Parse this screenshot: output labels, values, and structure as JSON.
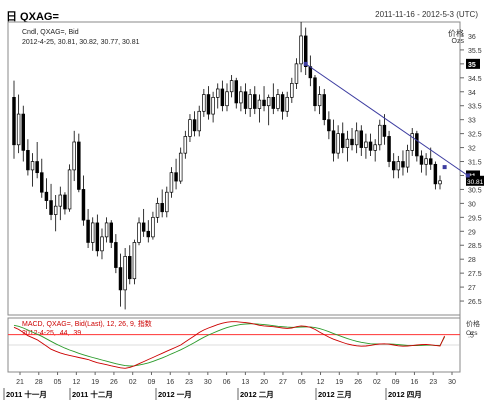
{
  "header": {
    "title": "日 QXAG=",
    "date_range": "2011-11-16 - 2012-5-3 (UTC)"
  },
  "legend": {
    "line1": "Cndl, QXAG=, Bid",
    "line2": "2012-4-25, 30.81, 30.82, 30.77, 30.81"
  },
  "price_axis": {
    "unit": "价格",
    "unit2": "Ozs"
  },
  "macd": {
    "line1": "MACD, QXAG=, Bid(Last), 12, 26, 9, 指数",
    "line2": "2012-4-25, .44, .39",
    "unit": "价格",
    "unit2": "Ozs",
    "ticks": [
      ".5"
    ]
  },
  "chart_data": [
    {
      "type": "candlestick",
      "title": "QXAG=",
      "ylim": [
        26,
        36.5
      ],
      "y_ticks": [
        26.5,
        27,
        27.5,
        28,
        28.5,
        29,
        29.5,
        30,
        30.5,
        31,
        31.5,
        32,
        32.5,
        33,
        33.5,
        34,
        34.5,
        35,
        35.5,
        36
      ],
      "y_tick_labels": [
        "26.5",
        "27",
        "27.5",
        "28",
        "28.5",
        "29",
        "29.5",
        "30",
        "30.5",
        "31",
        "31.5",
        "32",
        "32.5",
        "33",
        "33.5",
        "34",
        "34.5",
        "35",
        "35.5",
        "36"
      ],
      "last_price_label": "30.81",
      "marked_levels": [
        {
          "value": 35,
          "label": "35"
        },
        {
          "value": 31,
          "label": "31"
        }
      ],
      "x_tick_labels": [
        "21",
        "28",
        "05",
        "12",
        "19",
        "26",
        "02",
        "09",
        "16",
        "23",
        "30",
        "06",
        "13",
        "20",
        "27",
        "05",
        "12",
        "19",
        "26",
        "02",
        "09",
        "16",
        "23",
        "30"
      ],
      "month_labels": [
        "2011 十一月",
        "2011 十二月",
        "2012 一月",
        "2012 二月",
        "2012 三月",
        "2012 四月"
      ],
      "candles": [
        {
          "o": 33.8,
          "h": 34.4,
          "l": 31.6,
          "c": 32.1
        },
        {
          "o": 32.1,
          "h": 33.9,
          "l": 31.8,
          "c": 33.2
        },
        {
          "o": 33.2,
          "h": 33.5,
          "l": 31.5,
          "c": 31.9
        },
        {
          "o": 31.9,
          "h": 32.3,
          "l": 31.0,
          "c": 31.2
        },
        {
          "o": 31.2,
          "h": 31.8,
          "l": 30.6,
          "c": 31.5
        },
        {
          "o": 31.5,
          "h": 32.2,
          "l": 30.9,
          "c": 31.1
        },
        {
          "o": 31.1,
          "h": 31.6,
          "l": 30.2,
          "c": 30.4
        },
        {
          "o": 30.4,
          "h": 30.9,
          "l": 29.8,
          "c": 30.1
        },
        {
          "o": 30.1,
          "h": 30.7,
          "l": 29.4,
          "c": 29.6
        },
        {
          "o": 29.6,
          "h": 30.3,
          "l": 29.0,
          "c": 29.9
        },
        {
          "o": 29.9,
          "h": 30.6,
          "l": 29.4,
          "c": 30.3
        },
        {
          "o": 30.3,
          "h": 30.4,
          "l": 29.6,
          "c": 29.8
        },
        {
          "o": 29.8,
          "h": 31.4,
          "l": 29.7,
          "c": 31.2
        },
        {
          "o": 31.2,
          "h": 32.6,
          "l": 30.8,
          "c": 32.2
        },
        {
          "o": 32.2,
          "h": 32.5,
          "l": 30.4,
          "c": 30.5
        },
        {
          "o": 30.5,
          "h": 31.0,
          "l": 29.2,
          "c": 29.4
        },
        {
          "o": 29.4,
          "h": 29.8,
          "l": 28.4,
          "c": 28.6
        },
        {
          "o": 28.6,
          "h": 29.5,
          "l": 28.3,
          "c": 29.3
        },
        {
          "o": 29.3,
          "h": 29.6,
          "l": 28.1,
          "c": 28.3
        },
        {
          "o": 28.3,
          "h": 29.1,
          "l": 28.0,
          "c": 28.8
        },
        {
          "o": 28.8,
          "h": 29.5,
          "l": 28.6,
          "c": 29.3
        },
        {
          "o": 29.3,
          "h": 29.4,
          "l": 28.4,
          "c": 28.6
        },
        {
          "o": 28.6,
          "h": 28.9,
          "l": 27.5,
          "c": 27.7
        },
        {
          "o": 27.7,
          "h": 28.2,
          "l": 26.3,
          "c": 26.9
        },
        {
          "o": 26.9,
          "h": 28.4,
          "l": 26.2,
          "c": 28.1
        },
        {
          "o": 28.1,
          "h": 28.5,
          "l": 27.1,
          "c": 27.3
        },
        {
          "o": 27.3,
          "h": 28.7,
          "l": 27.1,
          "c": 28.6
        },
        {
          "o": 28.6,
          "h": 29.5,
          "l": 28.5,
          "c": 29.3
        },
        {
          "o": 29.3,
          "h": 29.8,
          "l": 28.8,
          "c": 29.0
        },
        {
          "o": 29.0,
          "h": 29.4,
          "l": 28.6,
          "c": 28.8
        },
        {
          "o": 28.8,
          "h": 29.7,
          "l": 28.7,
          "c": 29.5
        },
        {
          "o": 29.5,
          "h": 30.2,
          "l": 29.3,
          "c": 30.0
        },
        {
          "o": 30.0,
          "h": 30.5,
          "l": 29.5,
          "c": 29.7
        },
        {
          "o": 29.7,
          "h": 30.6,
          "l": 29.5,
          "c": 30.4
        },
        {
          "o": 30.4,
          "h": 31.3,
          "l": 30.2,
          "c": 31.1
        },
        {
          "o": 31.1,
          "h": 31.6,
          "l": 30.5,
          "c": 30.8
        },
        {
          "o": 30.8,
          "h": 32.0,
          "l": 30.7,
          "c": 31.8
        },
        {
          "o": 31.8,
          "h": 32.6,
          "l": 31.6,
          "c": 32.4
        },
        {
          "o": 32.4,
          "h": 33.2,
          "l": 32.2,
          "c": 33.0
        },
        {
          "o": 33.0,
          "h": 33.3,
          "l": 32.4,
          "c": 32.6
        },
        {
          "o": 32.6,
          "h": 33.5,
          "l": 32.4,
          "c": 33.3
        },
        {
          "o": 33.3,
          "h": 34.1,
          "l": 33.1,
          "c": 33.9
        },
        {
          "o": 33.9,
          "h": 34.2,
          "l": 33.0,
          "c": 33.2
        },
        {
          "o": 33.2,
          "h": 34.0,
          "l": 32.9,
          "c": 33.8
        },
        {
          "o": 33.8,
          "h": 34.3,
          "l": 33.4,
          "c": 34.1
        },
        {
          "o": 34.1,
          "h": 34.4,
          "l": 33.3,
          "c": 33.5
        },
        {
          "o": 33.5,
          "h": 34.3,
          "l": 33.3,
          "c": 34.0
        },
        {
          "o": 34.0,
          "h": 34.6,
          "l": 33.8,
          "c": 34.4
        },
        {
          "o": 34.4,
          "h": 34.5,
          "l": 33.4,
          "c": 33.6
        },
        {
          "o": 33.6,
          "h": 34.2,
          "l": 33.3,
          "c": 34.0
        },
        {
          "o": 34.0,
          "h": 34.3,
          "l": 33.2,
          "c": 33.4
        },
        {
          "o": 33.4,
          "h": 34.1,
          "l": 33.1,
          "c": 33.9
        },
        {
          "o": 33.9,
          "h": 34.2,
          "l": 33.2,
          "c": 33.4
        },
        {
          "o": 33.4,
          "h": 33.9,
          "l": 32.9,
          "c": 33.7
        },
        {
          "o": 33.7,
          "h": 34.2,
          "l": 33.3,
          "c": 33.5
        },
        {
          "o": 33.5,
          "h": 33.9,
          "l": 32.8,
          "c": 33.8
        },
        {
          "o": 33.8,
          "h": 34.3,
          "l": 33.2,
          "c": 33.4
        },
        {
          "o": 33.4,
          "h": 34.1,
          "l": 33.3,
          "c": 33.9
        },
        {
          "o": 33.9,
          "h": 34.0,
          "l": 33.0,
          "c": 33.3
        },
        {
          "o": 33.3,
          "h": 34.0,
          "l": 33.1,
          "c": 33.8
        },
        {
          "o": 33.8,
          "h": 34.5,
          "l": 33.6,
          "c": 34.3
        },
        {
          "o": 34.3,
          "h": 35.2,
          "l": 34.1,
          "c": 35.0
        },
        {
          "o": 35.0,
          "h": 36.5,
          "l": 34.7,
          "c": 36.0
        },
        {
          "o": 36.0,
          "h": 36.3,
          "l": 34.6,
          "c": 34.9
        },
        {
          "o": 34.9,
          "h": 35.3,
          "l": 34.2,
          "c": 34.5
        },
        {
          "o": 34.5,
          "h": 34.6,
          "l": 33.3,
          "c": 33.5
        },
        {
          "o": 33.5,
          "h": 34.2,
          "l": 33.2,
          "c": 33.9
        },
        {
          "o": 33.9,
          "h": 34.1,
          "l": 32.8,
          "c": 33.0
        },
        {
          "o": 33.0,
          "h": 33.3,
          "l": 32.3,
          "c": 32.6
        },
        {
          "o": 32.6,
          "h": 33.0,
          "l": 31.5,
          "c": 31.8
        },
        {
          "o": 31.8,
          "h": 32.8,
          "l": 31.6,
          "c": 32.5
        },
        {
          "o": 32.5,
          "h": 32.9,
          "l": 31.8,
          "c": 32.0
        },
        {
          "o": 32.0,
          "h": 32.6,
          "l": 31.5,
          "c": 32.3
        },
        {
          "o": 32.3,
          "h": 32.7,
          "l": 31.9,
          "c": 32.1
        },
        {
          "o": 32.1,
          "h": 32.9,
          "l": 31.8,
          "c": 32.6
        },
        {
          "o": 32.6,
          "h": 32.8,
          "l": 31.7,
          "c": 32.0
        },
        {
          "o": 32.0,
          "h": 32.5,
          "l": 31.6,
          "c": 32.2
        },
        {
          "o": 32.2,
          "h": 32.5,
          "l": 31.7,
          "c": 31.9
        },
        {
          "o": 31.9,
          "h": 32.3,
          "l": 31.5,
          "c": 32.1
        },
        {
          "o": 32.1,
          "h": 33.0,
          "l": 31.9,
          "c": 32.8
        },
        {
          "o": 32.8,
          "h": 33.2,
          "l": 32.1,
          "c": 32.4
        },
        {
          "o": 32.4,
          "h": 32.6,
          "l": 31.3,
          "c": 31.5
        },
        {
          "o": 31.5,
          "h": 31.8,
          "l": 30.9,
          "c": 31.2
        },
        {
          "o": 31.2,
          "h": 31.7,
          "l": 30.9,
          "c": 31.5
        },
        {
          "o": 31.5,
          "h": 31.9,
          "l": 31.0,
          "c": 31.3
        },
        {
          "o": 31.3,
          "h": 32.1,
          "l": 31.1,
          "c": 31.9
        },
        {
          "o": 31.9,
          "h": 32.7,
          "l": 31.7,
          "c": 32.5
        },
        {
          "o": 32.5,
          "h": 32.6,
          "l": 31.5,
          "c": 31.7
        },
        {
          "o": 31.7,
          "h": 31.9,
          "l": 31.1,
          "c": 31.4
        },
        {
          "o": 31.4,
          "h": 31.8,
          "l": 31.0,
          "c": 31.6
        },
        {
          "o": 31.6,
          "h": 32.0,
          "l": 31.2,
          "c": 31.4
        },
        {
          "o": 31.4,
          "h": 31.5,
          "l": 30.5,
          "c": 30.7
        },
        {
          "o": 30.7,
          "h": 31.0,
          "l": 30.5,
          "c": 30.81
        }
      ],
      "trendline": {
        "x0_index": 63,
        "y0": 35.0,
        "x1_index": 93,
        "y1": 31.3,
        "x2_index": 98,
        "y2": 31.0
      }
    },
    {
      "type": "line",
      "title": "MACD",
      "series": [
        {
          "name": "MACD",
          "color": "#cc0000"
        },
        {
          "name": "Signal",
          "color": "#2a9a2a"
        }
      ],
      "macd_values": [
        0.85,
        0.75,
        0.6,
        0.45,
        0.35,
        0.25,
        0.1,
        -0.05,
        -0.2,
        -0.3,
        -0.38,
        -0.45,
        -0.5,
        -0.55,
        -0.6,
        -0.65,
        -0.7,
        -0.78,
        -0.85,
        -0.9,
        -0.95,
        -1.0,
        -1.05,
        -1.1,
        -1.12,
        -1.08,
        -1.0,
        -0.9,
        -0.8,
        -0.7,
        -0.6,
        -0.5,
        -0.4,
        -0.3,
        -0.2,
        -0.1,
        0.0,
        0.15,
        0.3,
        0.45,
        0.6,
        0.72,
        0.82,
        0.9,
        0.98,
        1.05,
        1.1,
        1.12,
        1.12,
        1.1,
        1.08,
        1.05,
        1.0,
        0.95,
        0.92,
        0.9,
        0.88,
        0.85,
        0.82,
        0.8,
        0.82,
        0.88,
        0.92,
        0.9,
        0.85,
        0.75,
        0.62,
        0.5,
        0.38,
        0.28,
        0.2,
        0.12,
        0.05,
        0.0,
        -0.04,
        -0.06,
        -0.05,
        -0.02,
        0.02,
        0.05,
        0.06,
        0.04,
        0.0,
        -0.04,
        -0.06,
        -0.05,
        -0.03,
        0.0,
        0.02,
        0.03,
        0.01,
        -0.02,
        -0.05,
        0.44
      ],
      "signal_values": [
        0.95,
        0.9,
        0.82,
        0.72,
        0.62,
        0.52,
        0.42,
        0.3,
        0.18,
        0.06,
        -0.05,
        -0.15,
        -0.24,
        -0.32,
        -0.4,
        -0.47,
        -0.54,
        -0.6,
        -0.66,
        -0.72,
        -0.78,
        -0.84,
        -0.9,
        -0.95,
        -0.99,
        -1.01,
        -1.0,
        -0.97,
        -0.92,
        -0.86,
        -0.79,
        -0.71,
        -0.62,
        -0.53,
        -0.43,
        -0.33,
        -0.23,
        -0.12,
        0.0,
        0.12,
        0.25,
        0.37,
        0.48,
        0.58,
        0.67,
        0.76,
        0.84,
        0.9,
        0.95,
        0.99,
        1.01,
        1.02,
        1.02,
        1.0,
        0.98,
        0.96,
        0.93,
        0.9,
        0.88,
        0.86,
        0.85,
        0.85,
        0.86,
        0.87,
        0.87,
        0.84,
        0.79,
        0.72,
        0.64,
        0.55,
        0.47,
        0.39,
        0.31,
        0.24,
        0.18,
        0.13,
        0.09,
        0.06,
        0.05,
        0.05,
        0.05,
        0.05,
        0.04,
        0.02,
        0.0,
        -0.02,
        -0.03,
        -0.03,
        -0.02,
        -0.01,
        -0.01,
        -0.02,
        -0.03,
        0.39
      ]
    }
  ]
}
